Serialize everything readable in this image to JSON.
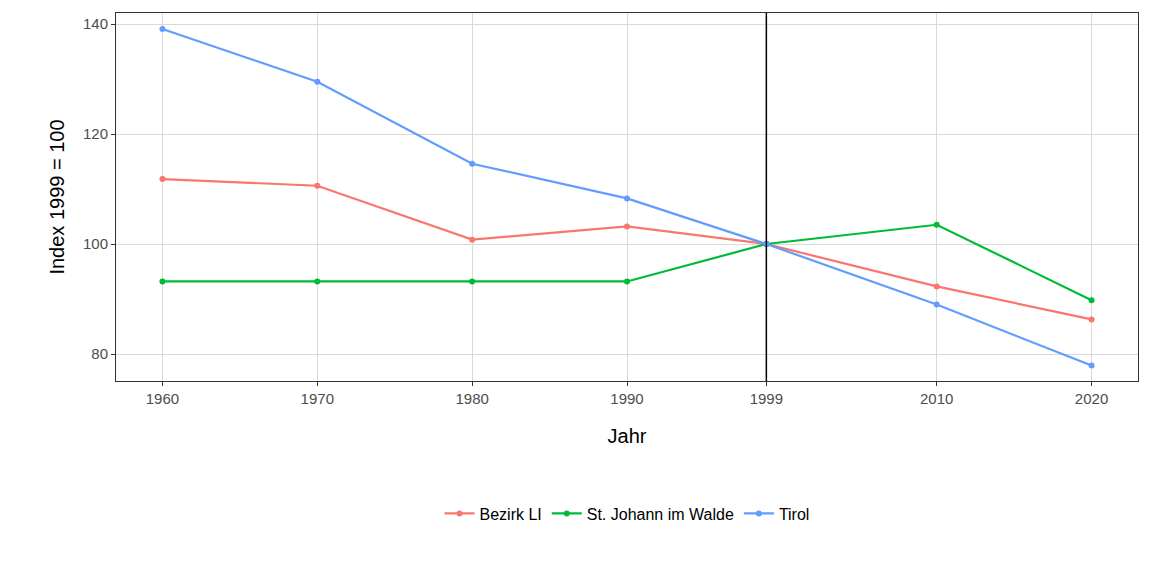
{
  "chart_data": {
    "type": "line",
    "x_label": "Jahr",
    "y_label": "Index 1999 = 100",
    "x": [
      1960,
      1970,
      1980,
      1990,
      1999,
      2010,
      2020
    ],
    "series": [
      {
        "name": "Bezirk LI",
        "color": "#F8766D",
        "values": [
          111.8,
          110.6,
          100.8,
          103.2,
          100,
          92.3,
          86.3
        ]
      },
      {
        "name": "St. Johann im Walde",
        "color": "#00BA38",
        "values": [
          93.2,
          93.2,
          93.2,
          93.2,
          100,
          103.5,
          89.8
        ]
      },
      {
        "name": "Tirol",
        "color": "#619CFF",
        "values": [
          139.1,
          129.5,
          114.6,
          108.3,
          100,
          89.0,
          77.9
        ]
      }
    ],
    "xlim": [
      1957,
      2023
    ],
    "xticks": [
      1960,
      1970,
      1980,
      1990,
      1999,
      2010,
      2020
    ],
    "ylim": [
      75.1,
      142
    ],
    "yticks": [
      80,
      100,
      120,
      140
    ],
    "vline": 1999,
    "grid": true,
    "legend": "bottom",
    "marker": "circle",
    "line_style": "solid"
  }
}
